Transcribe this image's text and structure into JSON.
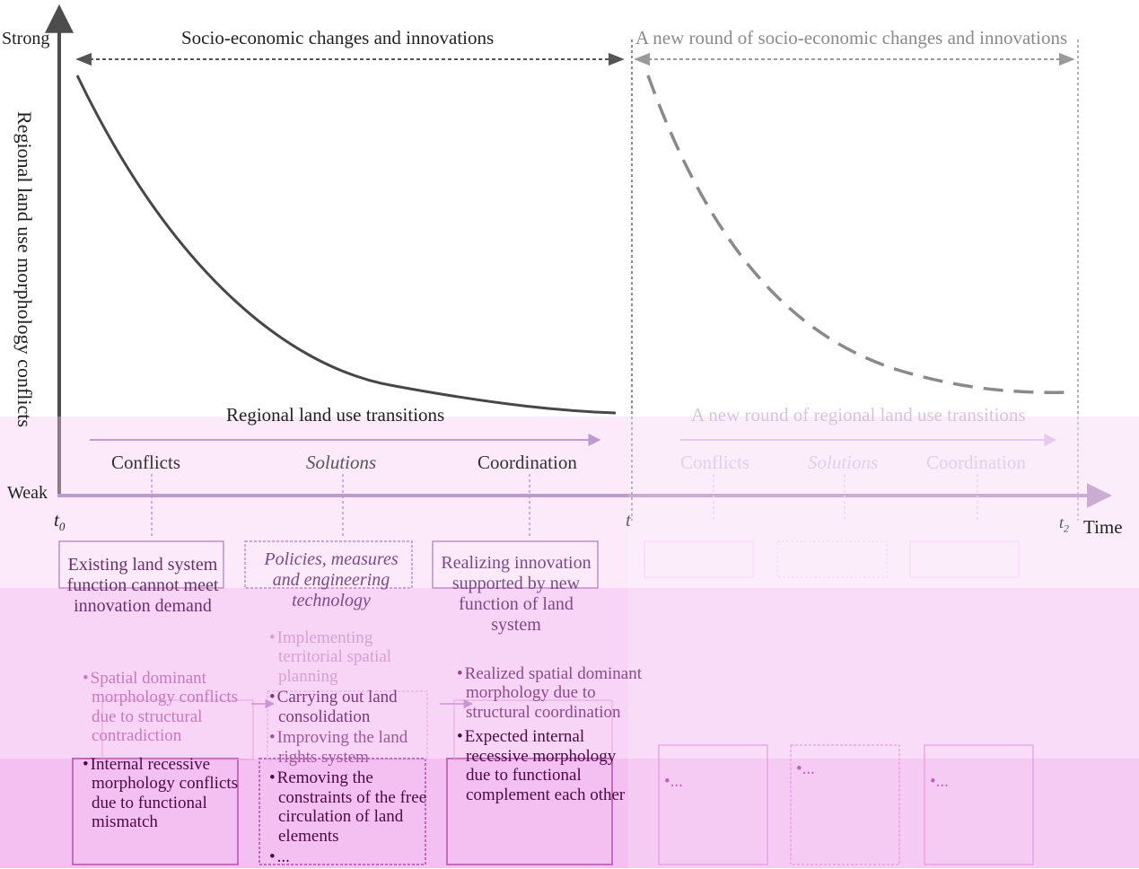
{
  "axis": {
    "y_label": "Regional land use morphology conflicts",
    "y_top": "Strong",
    "y_bottom": "Weak",
    "x_label": "Time",
    "t0": "t",
    "t0_sub": "0",
    "t1": "t",
    "t2": "t",
    "t2_sub": "2"
  },
  "top_spans": {
    "left": "Socio-economic changes and innovations",
    "right": "A new round of socio-economic changes and innovations"
  },
  "transitions": {
    "left": "Regional land use transitions",
    "right": "A new round of regional land use transitions"
  },
  "stages": {
    "left": [
      "Conflicts",
      "Solutions",
      "Coordination"
    ],
    "right": [
      "Conflicts",
      "Solutions",
      "Coordination"
    ]
  },
  "boxes": {
    "conflicts": {
      "title": "Existing land system function cannot meet innovation demand",
      "items": [
        "Spatial dominant morphology conflicts due to structural contradiction",
        "Internal recessive morphology conflicts due to functional mismatch"
      ]
    },
    "solutions": {
      "title": "Policies, measures and engineering technology",
      "items": [
        "Implementing territorial spatial planning",
        "Carrying out land consolidation",
        "Improving the land rights system",
        "Removing the constraints of the free circulation of land elements",
        "..."
      ]
    },
    "coordination": {
      "title": "Realizing innovation supported by new function of land system",
      "items": [
        "Realized spatial dominant morphology due to structural coordination",
        "Expected internal recessive morphology due to functional complement each other"
      ]
    },
    "ghost_items": [
      "...",
      "...",
      "..."
    ]
  },
  "colors": {
    "curve_solid": "#474747",
    "curve_dashed": "#8a8a8a",
    "axis": "#4d4d4d",
    "arrow_purple": "#9a80b0",
    "box_border": "#7a5090"
  }
}
